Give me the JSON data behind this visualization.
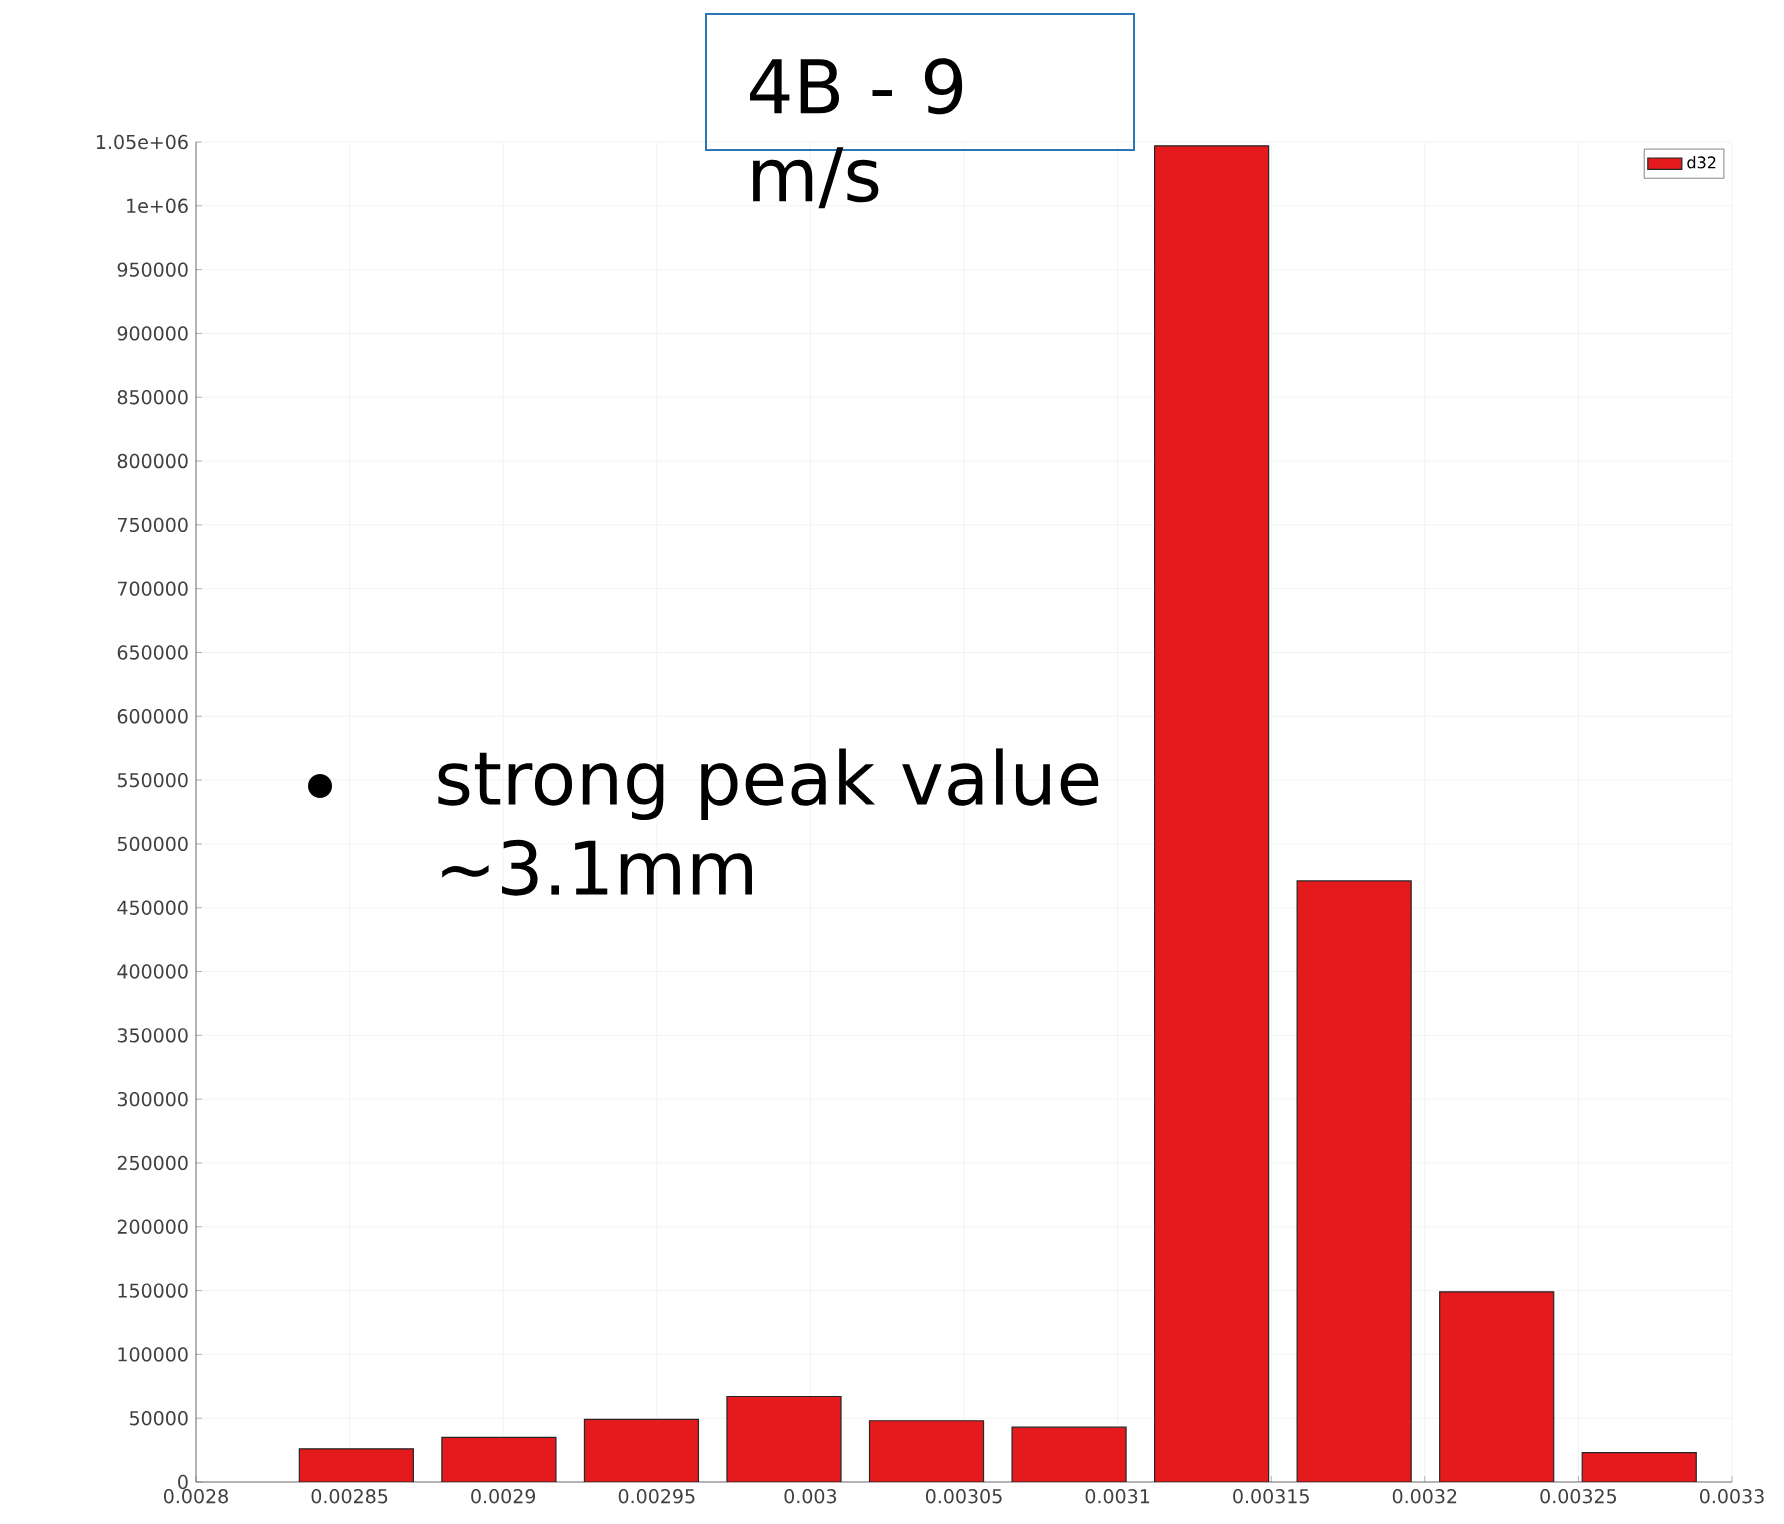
{
  "chart_data": {
    "type": "histogram",
    "title": "4B - 9 m/s",
    "annotations": [
      "strong peak value ~3.1mm"
    ],
    "bins": [
      0.002829,
      0.0028754,
      0.0029218,
      0.0029682,
      0.0030146,
      0.003061,
      0.0031074,
      0.0031538,
      0.0032002,
      0.0032466,
      0.003293
    ],
    "series": [
      {
        "name": "d32",
        "color": "#e41a1c",
        "values": [
          26000,
          35000,
          49000,
          67000,
          48000,
          43000,
          1047000,
          471000,
          149000,
          23000
        ]
      }
    ],
    "xlim": [
      0.0028,
      0.0033
    ],
    "xticks": [
      0.0028,
      0.00285,
      0.0029,
      0.00295,
      0.003,
      0.00305,
      0.0031,
      0.00315,
      0.0032,
      0.00325,
      0.0033
    ],
    "ylim": [
      0,
      1050000
    ],
    "yticks": [
      0,
      50000,
      100000,
      150000,
      200000,
      250000,
      300000,
      350000,
      400000,
      450000,
      500000,
      550000,
      600000,
      650000,
      700000,
      750000,
      800000,
      850000,
      900000,
      950000,
      {
        "value": 1000000,
        "label": "1e+06"
      },
      {
        "value": 1050000,
        "label": "1.05e+06"
      }
    ],
    "grid": true,
    "legend": "top right"
  }
}
